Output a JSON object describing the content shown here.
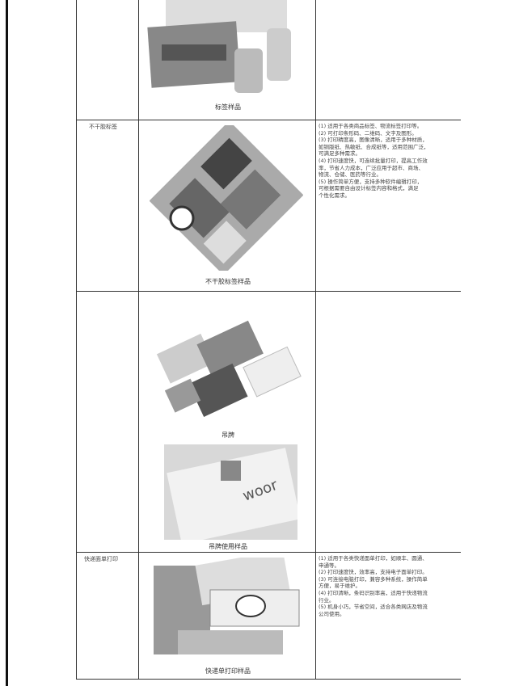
{
  "rows": [
    {
      "label": null,
      "captions": [
        "标签样品"
      ],
      "lines": []
    },
    {
      "label": "不干胶标签",
      "captions": [
        "不干胶标签样品"
      ],
      "lines": [
        "(1) 适用于各类商品标签、物流标签打印等。",
        "(2) 可打印条形码、二维码、文字及图形。",
        "(3) 打印精度高，图像清晰，适用于多种材质，",
        "如铜版纸、热敏纸、合成纸等，适用范围广泛，",
        "可满足多种需求。",
        "(4) 打印速度快，可连续批量打印，提高工作效",
        "率，节省人力成本，广泛应用于超市、商场、",
        "物流、仓储、医药等行业。",
        "(5) 操作简单方便，支持多种软件编辑打印，",
        "可根据需要自由设计标签内容和格式，满足",
        "个性化需求。"
      ]
    },
    {
      "label": null,
      "captions": [
        "吊牌",
        "吊牌使用样品"
      ],
      "lines": []
    },
    {
      "label": "快递面单打印",
      "captions": [
        "快递单打印样品"
      ],
      "lines": [
        "(1) 适用于各类快递面单打印，如顺丰、圆通、",
        "申通等。",
        "(2) 打印速度快，效率高，支持电子面单打印。",
        "(3) 可连接电脑打印，兼容多种系统，操作简单",
        "方便，易于维护。",
        "(4) 打印清晰，条码识别率高，适用于快递物流",
        "行业。",
        "(5) 机身小巧，节省空间，适合各类网店及物流",
        "公司使用。"
      ]
    }
  ]
}
